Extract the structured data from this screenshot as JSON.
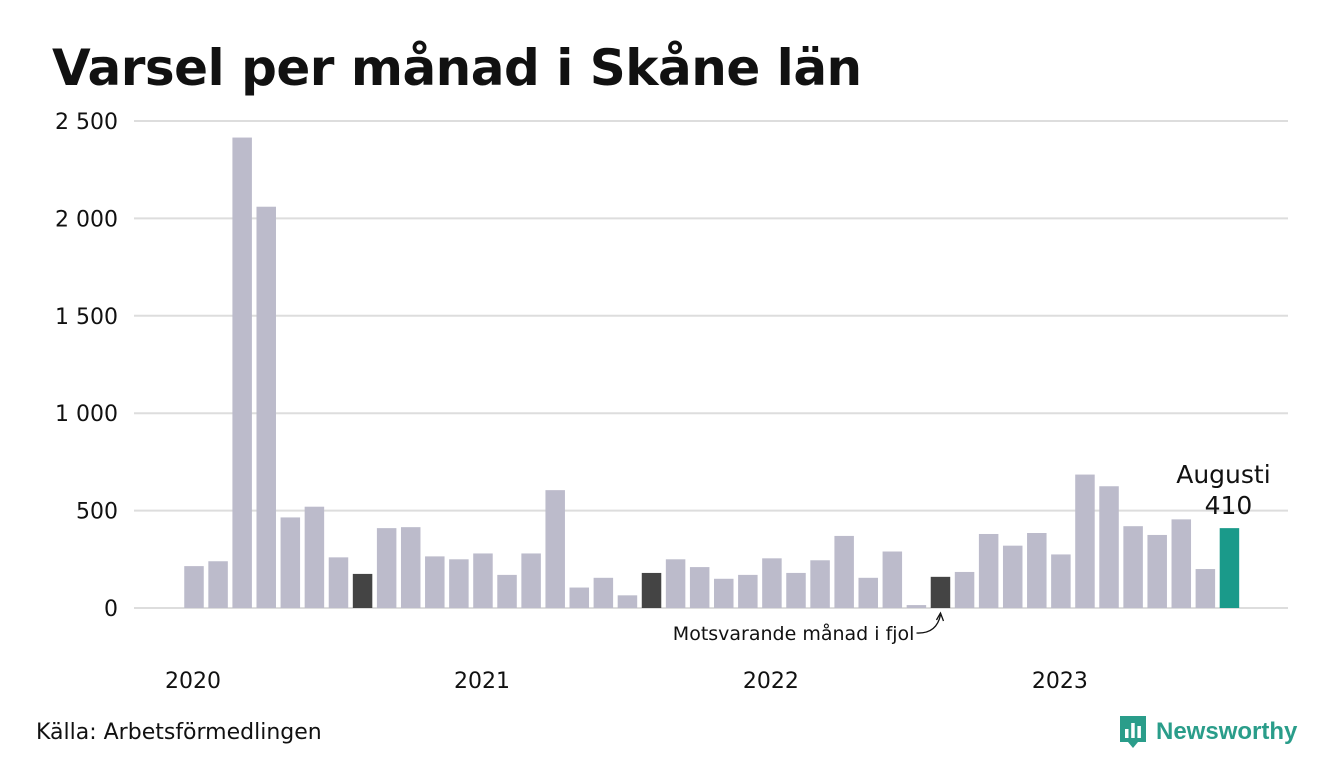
{
  "chart_data": {
    "type": "bar",
    "title": "Varsel per månad i Skåne län",
    "xlabel": "",
    "ylabel": "",
    "ylim": [
      0,
      2500
    ],
    "yticks": [
      0,
      500,
      1000,
      1500,
      2000,
      2500
    ],
    "ytick_labels": [
      "0",
      "500",
      "1 000",
      "1 500",
      "2 000",
      "2 500"
    ],
    "xtick_labels": [
      {
        "label": "2020",
        "index": 0
      },
      {
        "label": "2021",
        "index": 12
      },
      {
        "label": "2022",
        "index": 24
      },
      {
        "label": "2023",
        "index": 36
      }
    ],
    "grid": true,
    "series": [
      {
        "values": [
          215,
          240,
          2415,
          2060,
          465,
          520,
          260,
          175,
          410,
          415,
          265,
          250,
          280,
          170,
          280,
          605,
          105,
          155,
          65,
          180,
          250,
          210,
          150,
          170,
          255,
          180,
          245,
          370,
          155,
          290,
          15,
          160,
          185,
          380,
          320,
          385,
          275,
          685,
          625,
          420,
          375,
          455,
          200,
          410
        ]
      }
    ],
    "highlight_prior_year_indices": [
      7,
      19,
      31
    ],
    "highlight_current_index": 43,
    "colors": {
      "default": "#bcbbcb",
      "prior_year": "#444444",
      "current": "#1a9a8a",
      "grid": "#dddddd"
    },
    "annotations": {
      "current_month": "Augusti",
      "current_value": "410",
      "prior_year_note": "Motsvarande månad i fjol"
    }
  },
  "footer": {
    "source": "Källa: Arbetsförmedlingen",
    "logo_text": "Newsworthy",
    "logo_icon": "newsworthy-chart-icon"
  }
}
